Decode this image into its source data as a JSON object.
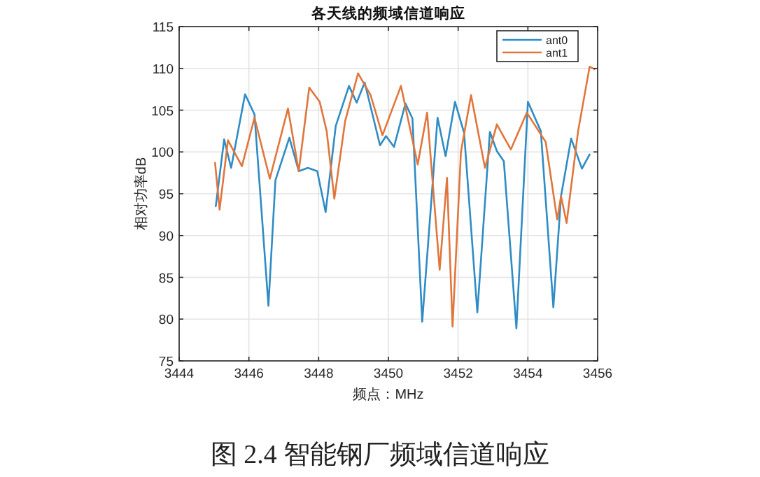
{
  "chart_data": {
    "type": "line",
    "title": "各天线的频域信道响应",
    "xlabel": "频点：MHz",
    "ylabel": "相对功率dB",
    "xlim": [
      3444,
      3456
    ],
    "xticks": [
      3444,
      3446,
      3448,
      3450,
      3452,
      3454,
      3456
    ],
    "ylim": [
      75,
      115
    ],
    "yticks": [
      75,
      80,
      85,
      90,
      95,
      100,
      105,
      110,
      115
    ],
    "grid": true,
    "legend": "top right",
    "line_style": "solid",
    "annotations": [
      "图 2.4 智能钢厂频域信道响应"
    ],
    "series": [
      {
        "name": "ant0",
        "color": "#2f8cc4",
        "x": [
          3445.05,
          3445.29,
          3445.49,
          3445.89,
          3446.16,
          3446.56,
          3446.76,
          3447.16,
          3447.43,
          3447.69,
          3447.96,
          3448.2,
          3448.49,
          3448.87,
          3449.09,
          3449.32,
          3449.76,
          3449.93,
          3450.16,
          3450.49,
          3450.69,
          3450.97,
          3451.41,
          3451.64,
          3451.91,
          3452.17,
          3452.55,
          3452.91,
          3453.11,
          3453.31,
          3453.67,
          3454.0,
          3454.37,
          3454.73,
          3454.95,
          3455.24,
          3455.55,
          3455.77
        ],
        "values": [
          93.5,
          101.5,
          98.1,
          106.9,
          104.5,
          81.6,
          96.6,
          101.7,
          97.7,
          98.1,
          97.7,
          92.8,
          103.1,
          107.9,
          105.9,
          108.3,
          100.8,
          101.9,
          100.6,
          105.8,
          104.0,
          79.7,
          104.1,
          99.5,
          106.0,
          102.3,
          80.8,
          102.4,
          100.1,
          98.9,
          78.9,
          106.0,
          102.5,
          81.4,
          94.7,
          101.6,
          98.0,
          99.7
        ]
      },
      {
        "name": "ant1",
        "color": "#e0763c",
        "x": [
          3445.03,
          3445.16,
          3445.4,
          3445.8,
          3446.16,
          3446.6,
          3447.12,
          3447.43,
          3447.73,
          3448.03,
          3448.23,
          3448.45,
          3448.76,
          3449.13,
          3449.49,
          3449.83,
          3450.36,
          3450.84,
          3451.11,
          3451.47,
          3451.68,
          3451.84,
          3452.08,
          3452.37,
          3452.77,
          3453.11,
          3453.51,
          3453.97,
          3454.51,
          3454.84,
          3454.95,
          3455.11,
          3455.44,
          3455.77,
          3455.91
        ],
        "values": [
          98.7,
          93.1,
          101.4,
          98.3,
          104.1,
          96.8,
          105.2,
          97.7,
          107.7,
          106.0,
          102.5,
          94.4,
          103.7,
          109.4,
          106.8,
          102.0,
          107.9,
          98.5,
          104.7,
          85.9,
          96.9,
          79.1,
          100.0,
          106.8,
          98.1,
          103.3,
          100.3,
          104.7,
          101.2,
          91.9,
          94.7,
          91.5,
          102.5,
          110.2,
          109.9
        ]
      }
    ]
  }
}
